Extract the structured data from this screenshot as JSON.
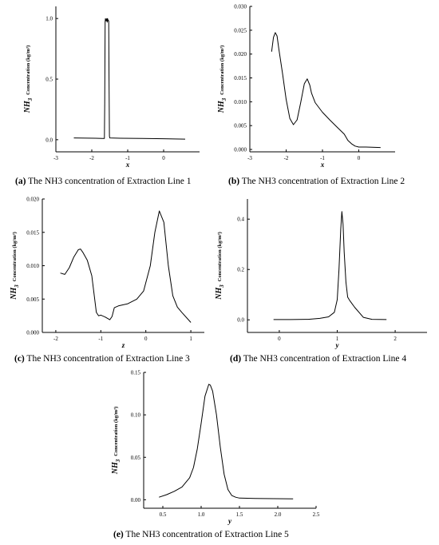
{
  "figure": {
    "ylabel_prefix": "NH",
    "ylabel_sub": "3",
    "ylabel_suffix": "Concentration (kg/m³)"
  },
  "chart_data": [
    {
      "id": "a",
      "type": "line",
      "caption_tag": "(a)",
      "caption_text": " The NH3 concentration of Extraction Line 1",
      "xlabel": "x",
      "xlim": [
        -3,
        1
      ],
      "ylim": [
        -0.1,
        1.1
      ],
      "xticks": [
        -3,
        -2,
        -1,
        0
      ],
      "xtick_labels": [
        "-3",
        "-2",
        "-1",
        "0"
      ],
      "yticks": [
        0,
        0.5,
        1.0
      ],
      "ytick_labels": [
        "0.0",
        "0.5",
        "1.0"
      ],
      "series": [
        {
          "x": [
            -2.5,
            -1.9,
            -1.7,
            -1.65,
            -1.64,
            -1.63,
            -1.62,
            -1.6,
            -1.58,
            -1.57,
            -1.56,
            -1.555,
            -1.55,
            -1.53,
            -1.52,
            -1.51,
            -1.5,
            -1.2,
            -0.6,
            0,
            0.6
          ],
          "y": [
            0.015,
            0.012,
            0.01,
            0.01,
            0.3,
            0.97,
            1.0,
            0.98,
            1.0,
            0.97,
            1.0,
            0.98,
            0.99,
            0.98,
            0.5,
            0.03,
            0.015,
            0.012,
            0.01,
            0.008,
            0.005
          ]
        }
      ]
    },
    {
      "id": "b",
      "type": "line",
      "caption_tag": "(b)",
      "caption_text": " The NH3 concentration of Extraction Line 2",
      "xlabel": "x",
      "xlim": [
        -3,
        1
      ],
      "ylim": [
        -0.0005,
        0.03
      ],
      "xticks": [
        -3,
        -2,
        -1,
        0
      ],
      "xtick_labels": [
        "-3",
        "-2",
        "-1",
        "0"
      ],
      "yticks": [
        0,
        0.005,
        0.01,
        0.015,
        0.02,
        0.025,
        0.03
      ],
      "ytick_labels": [
        "0.000",
        "0.005",
        "0.010",
        "0.015",
        "0.020",
        "0.025",
        "0.030"
      ],
      "series": [
        {
          "x": [
            -2.4,
            -2.35,
            -2.3,
            -2.25,
            -2.2,
            -2.1,
            -2.0,
            -1.9,
            -1.8,
            -1.7,
            -1.6,
            -1.5,
            -1.42,
            -1.35,
            -1.3,
            -1.2,
            -1.0,
            -0.8,
            -0.6,
            -0.4,
            -0.3,
            -0.2,
            -0.1,
            0,
            0.2,
            0.6
          ],
          "y": [
            0.0205,
            0.0235,
            0.0245,
            0.0238,
            0.021,
            0.016,
            0.0105,
            0.0065,
            0.0052,
            0.0062,
            0.0098,
            0.0138,
            0.0148,
            0.0135,
            0.0118,
            0.0098,
            0.0078,
            0.0062,
            0.0047,
            0.0032,
            0.0019,
            0.0012,
            0.0007,
            0.0005,
            0.0005,
            0.0004
          ]
        }
      ]
    },
    {
      "id": "c",
      "type": "line",
      "caption_tag": "(c)",
      "caption_text": " The NH3 concentration of Extraction Line 3",
      "xlabel": "z",
      "xlim": [
        -2.3,
        1.3
      ],
      "ylim": [
        0,
        0.02
      ],
      "xticks": [
        -2,
        -1,
        0,
        1
      ],
      "xtick_labels": [
        "-2",
        "-1",
        "0",
        "1"
      ],
      "yticks": [
        0,
        0.005,
        0.01,
        0.015,
        0.02
      ],
      "ytick_labels": [
        "0.000",
        "0.005",
        "0.010",
        "0.015",
        "0.020"
      ],
      "series": [
        {
          "x": [
            -1.9,
            -1.8,
            -1.7,
            -1.6,
            -1.5,
            -1.45,
            -1.4,
            -1.3,
            -1.2,
            -1.1,
            -1.05,
            -1.0,
            -0.9,
            -0.8,
            -0.75,
            -0.7,
            -0.6,
            -0.4,
            -0.2,
            -0.05,
            0.1,
            0.2,
            0.3,
            0.4,
            0.5,
            0.6,
            0.7,
            0.8,
            1.0
          ],
          "y": [
            0.0089,
            0.0087,
            0.0097,
            0.0113,
            0.0124,
            0.0125,
            0.012,
            0.0108,
            0.0085,
            0.003,
            0.0025,
            0.0026,
            0.0023,
            0.0019,
            0.0024,
            0.0037,
            0.004,
            0.0043,
            0.005,
            0.0062,
            0.01,
            0.015,
            0.0182,
            0.0165,
            0.01,
            0.0055,
            0.0038,
            0.003,
            0.0015
          ]
        }
      ]
    },
    {
      "id": "d",
      "type": "line",
      "caption_tag": "(d)",
      "caption_text": " The NH3 concentration of Extraction Line 4",
      "xlabel": "y",
      "xlim": [
        -0.55,
        2.55
      ],
      "ylim": [
        -0.05,
        0.48
      ],
      "xticks": [
        0,
        1,
        2
      ],
      "xtick_labels": [
        "0",
        "1",
        "2"
      ],
      "yticks": [
        0,
        0.2,
        0.4
      ],
      "ytick_labels": [
        "0.0",
        "0.2",
        "0.4"
      ],
      "series": [
        {
          "x": [
            -0.1,
            0.2,
            0.5,
            0.7,
            0.85,
            0.95,
            1.0,
            1.03,
            1.06,
            1.08,
            1.1,
            1.12,
            1.15,
            1.18,
            1.22,
            1.3,
            1.45,
            1.6,
            1.85
          ],
          "y": [
            0.001,
            0.001,
            0.002,
            0.006,
            0.012,
            0.03,
            0.08,
            0.2,
            0.36,
            0.43,
            0.38,
            0.27,
            0.15,
            0.09,
            0.075,
            0.05,
            0.01,
            0.002,
            0.001
          ]
        }
      ]
    },
    {
      "id": "e",
      "type": "line",
      "caption_tag": "(e)",
      "caption_text": " The NH3 concentration of Extraction Line 5",
      "xlabel": "y",
      "xlim": [
        0.25,
        2.5
      ],
      "ylim": [
        -0.01,
        0.15
      ],
      "xticks": [
        0.5,
        1.0,
        1.5,
        2.0,
        2.5
      ],
      "xtick_labels": [
        "0.5",
        "1.0",
        "1.5",
        "2.0",
        "2.5"
      ],
      "yticks": [
        0,
        0.05,
        0.1,
        0.15
      ],
      "ytick_labels": [
        "0.00",
        "0.05",
        "0.10",
        "0.15"
      ],
      "series": [
        {
          "x": [
            0.45,
            0.55,
            0.65,
            0.75,
            0.85,
            0.9,
            0.95,
            1.0,
            1.05,
            1.1,
            1.12,
            1.15,
            1.2,
            1.25,
            1.3,
            1.35,
            1.4,
            1.45,
            1.5,
            1.7,
            2.2
          ],
          "y": [
            0.003,
            0.006,
            0.01,
            0.015,
            0.026,
            0.038,
            0.06,
            0.09,
            0.122,
            0.136,
            0.135,
            0.128,
            0.1,
            0.062,
            0.03,
            0.012,
            0.005,
            0.003,
            0.002,
            0.0015,
            0.001
          ]
        }
      ]
    }
  ]
}
